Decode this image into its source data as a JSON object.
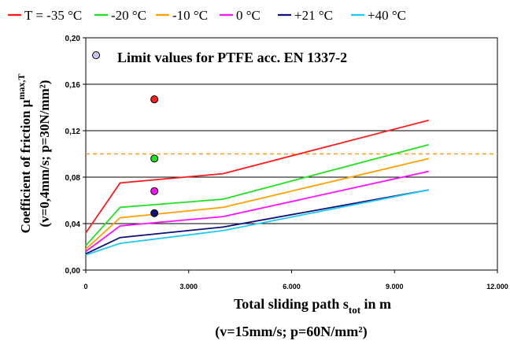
{
  "chart_data": {
    "type": "line",
    "title": "",
    "annotation": "Limit values for PTFE acc. EN 1337-2",
    "xlabel": {
      "main": "Total sliding path s",
      "sub": "tot",
      "unit": " in m",
      "line2": "(v=15mm/s; p=60N/mm²)"
    },
    "ylabel": {
      "main": "Coefficient of friction μ",
      "sub": "max,T",
      "line2": "(v=0,4mm/s; p=30N/mm²)"
    },
    "xlim": [
      0,
      12000
    ],
    "ylim": [
      0,
      0.2
    ],
    "x_ticks": [
      {
        "v": 0,
        "label": "0"
      },
      {
        "v": 3000,
        "label": "3.000"
      },
      {
        "v": 6000,
        "label": "6.000"
      },
      {
        "v": 9000,
        "label": "9.000"
      },
      {
        "v": 12000,
        "label": "12.000"
      }
    ],
    "y_ticks": [
      {
        "v": 0,
        "label": "0,00"
      },
      {
        "v": 0.04,
        "label": "0,04"
      },
      {
        "v": 0.08,
        "label": "0,08"
      },
      {
        "v": 0.12,
        "label": "0,12"
      },
      {
        "v": 0.16,
        "label": "0,16"
      },
      {
        "v": 0.2,
        "label": "0,20"
      }
    ],
    "grid": "horizontal",
    "legend_position": "top",
    "reference_line": {
      "y": 0.1,
      "color": "#F5A020",
      "style": "dashed"
    },
    "series": [
      {
        "name": "T = -35 °C",
        "color": "#FF1A1A",
        "x": [
          0,
          1000,
          4000,
          10000
        ],
        "y": [
          0.032,
          0.075,
          0.083,
          0.129
        ]
      },
      {
        "name": "-20 °C",
        "color": "#22E022",
        "x": [
          0,
          1000,
          4000,
          10000
        ],
        "y": [
          0.021,
          0.054,
          0.061,
          0.108
        ]
      },
      {
        "name": "-10 °C",
        "color": "#FFA000",
        "x": [
          0,
          1000,
          4000,
          10000
        ],
        "y": [
          0.018,
          0.045,
          0.054,
          0.096
        ]
      },
      {
        "name": "0 °C",
        "color": "#FF10FF",
        "x": [
          0,
          1000,
          4000,
          10000
        ],
        "y": [
          0.016,
          0.038,
          0.046,
          0.085
        ]
      },
      {
        "name": "+21 °C",
        "color": "#10107A",
        "x": [
          0,
          1000,
          4000,
          10000
        ],
        "y": [
          0.014,
          0.028,
          0.037,
          0.069
        ]
      },
      {
        "name": "+40 °C",
        "color": "#22C8F0",
        "x": [
          0,
          1000,
          4000,
          10000
        ],
        "y": [
          0.013,
          0.023,
          0.034,
          0.069
        ]
      }
    ],
    "limit_points": [
      {
        "x": 300,
        "y": 0.185,
        "color": "#C8C8F0"
      },
      {
        "x": 2000,
        "y": 0.147,
        "color": "#FF1A1A"
      },
      {
        "x": 2000,
        "y": 0.096,
        "color": "#22E022"
      },
      {
        "x": 2000,
        "y": 0.068,
        "color": "#FF10FF"
      },
      {
        "x": 2000,
        "y": 0.049,
        "color": "#10107A"
      }
    ]
  }
}
